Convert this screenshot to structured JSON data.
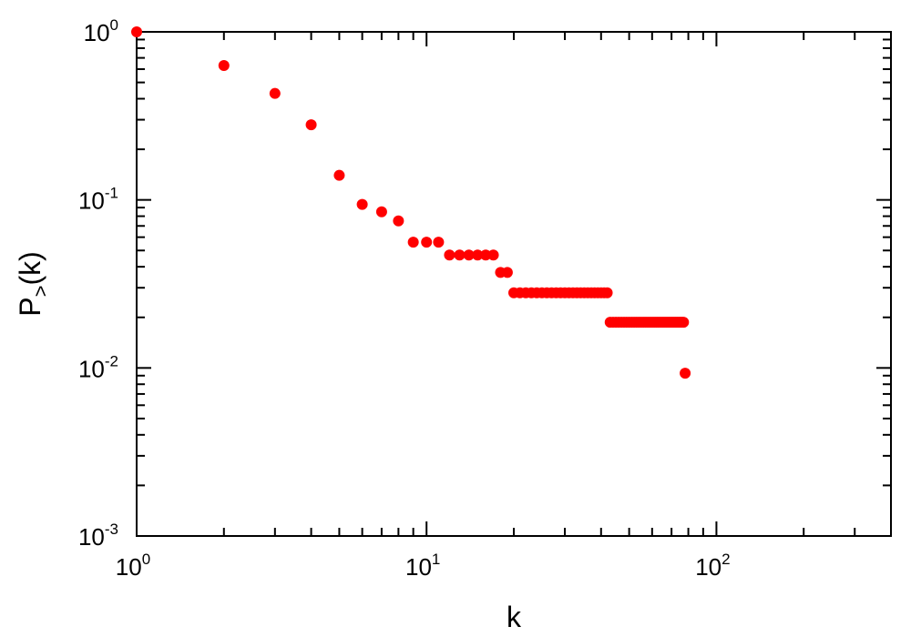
{
  "chart_data": {
    "type": "scatter",
    "title": "",
    "xlabel": "k",
    "ylabel": {
      "main": "P",
      "subscript": ">",
      "suffix": "(k)"
    },
    "x_scale": "log",
    "y_scale": "log",
    "xlim": [
      1,
      400
    ],
    "ylim": [
      0.001,
      1
    ],
    "grid": false,
    "marker_color": "#ff0000",
    "x_ticks": [
      {
        "base": "10",
        "exp": "0",
        "value": 1
      },
      {
        "base": "10",
        "exp": "1",
        "value": 10
      },
      {
        "base": "10",
        "exp": "2",
        "value": 100
      }
    ],
    "y_ticks": [
      {
        "base": "10",
        "exp": "0",
        "value": 1
      },
      {
        "base": "10",
        "exp": "-1",
        "value": 0.1
      },
      {
        "base": "10",
        "exp": "-2",
        "value": 0.01
      },
      {
        "base": "10",
        "exp": "-3",
        "value": 0.001
      }
    ],
    "series": [
      {
        "points": [
          [
            1,
            1.0
          ],
          [
            2,
            0.63
          ],
          [
            3,
            0.43
          ],
          [
            4,
            0.28
          ],
          [
            5,
            0.14
          ],
          [
            6,
            0.094
          ],
          [
            7,
            0.085
          ],
          [
            8,
            0.075
          ],
          [
            9,
            0.056
          ],
          [
            10,
            0.056
          ],
          [
            11,
            0.056
          ],
          [
            12,
            0.047
          ],
          [
            13,
            0.047
          ],
          [
            14,
            0.047
          ],
          [
            15,
            0.047
          ],
          [
            16,
            0.047
          ],
          [
            17,
            0.047
          ],
          [
            18,
            0.037
          ],
          [
            19,
            0.037
          ],
          [
            20,
            0.028
          ],
          [
            21,
            0.028
          ],
          [
            22,
            0.028
          ],
          [
            23,
            0.028
          ],
          [
            24,
            0.028
          ],
          [
            25,
            0.028
          ],
          [
            26,
            0.028
          ],
          [
            27,
            0.028
          ],
          [
            28,
            0.028
          ],
          [
            29,
            0.028
          ],
          [
            30,
            0.028
          ],
          [
            31,
            0.028
          ],
          [
            32,
            0.028
          ],
          [
            33,
            0.028
          ],
          [
            34,
            0.028
          ],
          [
            35,
            0.028
          ],
          [
            36,
            0.028
          ],
          [
            37,
            0.028
          ],
          [
            38,
            0.028
          ],
          [
            39,
            0.028
          ],
          [
            40,
            0.028
          ],
          [
            41,
            0.028
          ],
          [
            42,
            0.028
          ],
          [
            43,
            0.0187
          ],
          [
            44,
            0.0187
          ],
          [
            45,
            0.0187
          ],
          [
            46,
            0.0187
          ],
          [
            47,
            0.0187
          ],
          [
            48,
            0.0187
          ],
          [
            49,
            0.0187
          ],
          [
            50,
            0.0187
          ],
          [
            51,
            0.0187
          ],
          [
            52,
            0.0187
          ],
          [
            53,
            0.0187
          ],
          [
            54,
            0.0187
          ],
          [
            55,
            0.0187
          ],
          [
            56,
            0.0187
          ],
          [
            57,
            0.0187
          ],
          [
            58,
            0.0187
          ],
          [
            59,
            0.0187
          ],
          [
            60,
            0.0187
          ],
          [
            61,
            0.0187
          ],
          [
            62,
            0.0187
          ],
          [
            63,
            0.0187
          ],
          [
            64,
            0.0187
          ],
          [
            65,
            0.0187
          ],
          [
            66,
            0.0187
          ],
          [
            67,
            0.0187
          ],
          [
            68,
            0.0187
          ],
          [
            69,
            0.0187
          ],
          [
            70,
            0.0187
          ],
          [
            71,
            0.0187
          ],
          [
            72,
            0.0187
          ],
          [
            73,
            0.0187
          ],
          [
            74,
            0.0187
          ],
          [
            75,
            0.0187
          ],
          [
            76,
            0.0187
          ],
          [
            77,
            0.0187
          ],
          [
            78,
            0.0093
          ]
        ]
      }
    ]
  }
}
